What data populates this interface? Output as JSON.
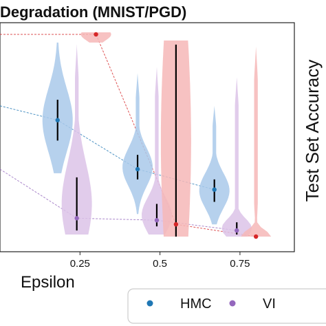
{
  "chart_data": {
    "type": "violin",
    "title": "Degradation (MNIST/PGD)",
    "xlabel": "Epsilon",
    "ylabel": "Test Set Accuracy",
    "xticks": [
      "0.25",
      "0.5",
      "0.75"
    ],
    "xtick_values": [
      0.25,
      0.5,
      0.75
    ],
    "xlim": [
      0.0,
      0.92
    ],
    "ylim": [
      0.0,
      1.0
    ],
    "grid": false,
    "legend_position": "bottom",
    "series": [
      {
        "name": "HMC",
        "color": "#1f77b4",
        "fill": "#a9c9ea",
        "line_from": {
          "x": 0.0,
          "y": 0.64
        },
        "points": [
          {
            "x": 0.18,
            "median": 0.57,
            "q1": 0.47,
            "q3": 0.67,
            "min": 0.31,
            "max": 0.95
          },
          {
            "x": 0.43,
            "median": 0.33,
            "q1": 0.28,
            "q3": 0.4,
            "min": 0.11,
            "max": 0.8
          },
          {
            "x": 0.67,
            "median": 0.23,
            "q1": 0.17,
            "q3": 0.28,
            "min": 0.06,
            "max": 0.64
          }
        ]
      },
      {
        "name": "VI",
        "color": "#9467bd",
        "fill": "#dcc3e8",
        "line_from": {
          "x": 0.0,
          "y": 0.33
        },
        "points": [
          {
            "x": 0.24,
            "median": 0.09,
            "q1": 0.03,
            "q3": 0.29,
            "min": 0.01,
            "max": 0.94
          },
          {
            "x": 0.49,
            "median": 0.08,
            "q1": 0.05,
            "q3": 0.16,
            "min": 0.01,
            "max": 0.83
          },
          {
            "x": 0.74,
            "median": 0.03,
            "q1": 0.01,
            "q3": 0.07,
            "min": 0.0,
            "max": 0.78
          }
        ]
      },
      {
        "name": "",
        "color": "#d62728",
        "fill": "#f6b7b7",
        "line_from": {
          "x": 0.0,
          "y": 0.99
        },
        "points": [
          {
            "x": 0.3,
            "median": 0.99,
            "q1": 0.99,
            "q3": 0.99,
            "min": 0.95,
            "max": 1.0
          },
          {
            "x": 0.55,
            "median": 0.06,
            "q1": 0.0,
            "q3": 0.94,
            "min": 0.0,
            "max": 0.96
          },
          {
            "x": 0.8,
            "median": 0.0,
            "q1": 0.0,
            "q3": 0.0,
            "min": 0.0,
            "max": 0.93
          }
        ]
      }
    ]
  }
}
